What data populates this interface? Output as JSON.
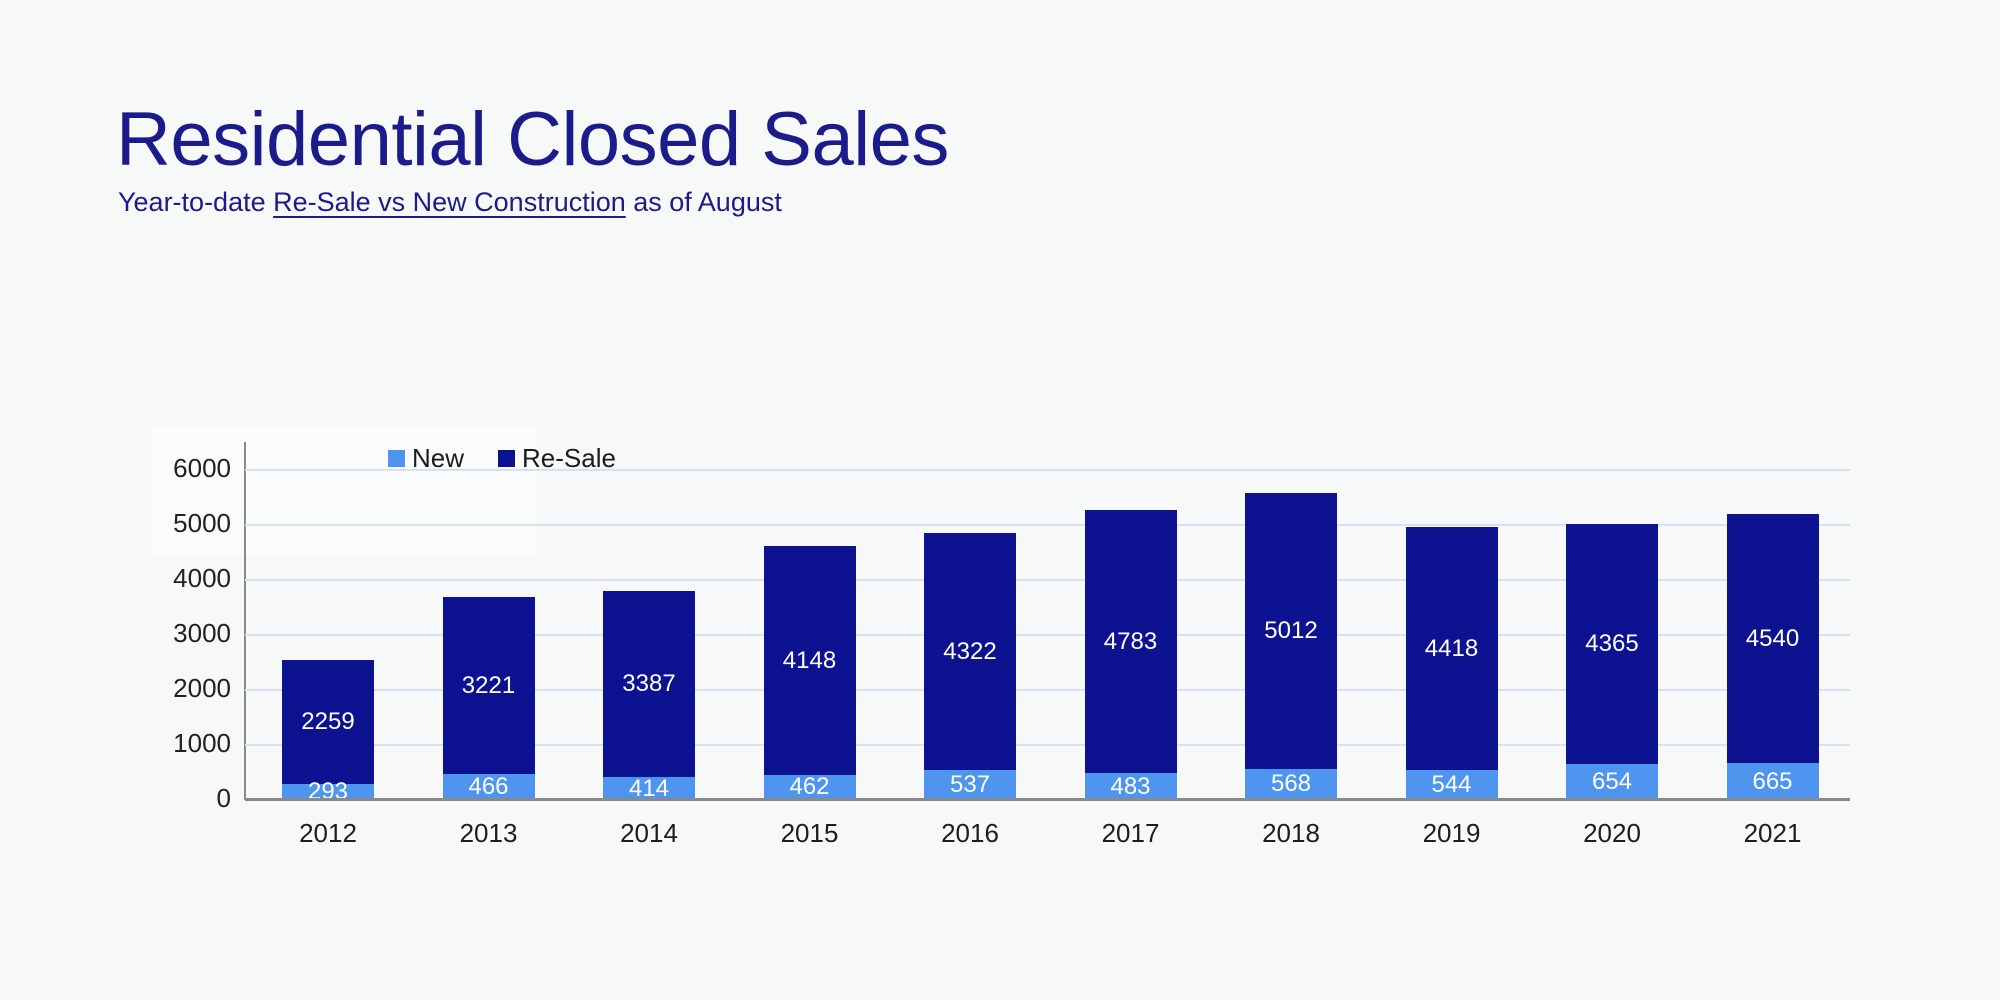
{
  "page": {
    "background": "#f7f8f8"
  },
  "header": {
    "title": "Residential Closed Sales",
    "subtitle": {
      "prefix": "Year-to-date ",
      "underlined": "Re-Sale vs New Construction",
      "suffix": " as of August"
    },
    "accent_color": "#1b1b8c"
  },
  "chart_data": {
    "type": "bar",
    "stacked": true,
    "categories": [
      "2012",
      "2013",
      "2014",
      "2015",
      "2016",
      "2017",
      "2018",
      "2019",
      "2020",
      "2021"
    ],
    "series": [
      {
        "name": "New",
        "color": "#4e95ef",
        "values": [
          293,
          466,
          414,
          462,
          537,
          483,
          568,
          544,
          654,
          665
        ]
      },
      {
        "name": "Re-Sale",
        "color": "#0d1290",
        "values": [
          2259,
          3221,
          3387,
          4148,
          4322,
          4783,
          5012,
          4418,
          4365,
          4540
        ]
      }
    ],
    "y_ticks": [
      0,
      1000,
      2000,
      3000,
      4000,
      5000,
      6000
    ],
    "ylim": [
      0,
      6500
    ],
    "grid": true,
    "legend_position": "top-left-inside",
    "data_labels_color": "#ffffff",
    "axis_color": "#8a8a8a",
    "gridline_color": "#d8e1ef",
    "tick_label_color": "#212121"
  }
}
